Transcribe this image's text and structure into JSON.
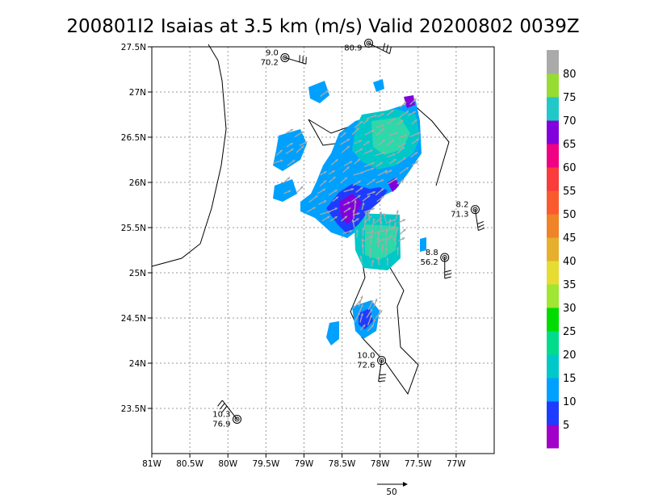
{
  "title": "200801I2 Isaias at 3.5 km (m/s) Valid 20200802 0039Z",
  "map": {
    "lon_range": [
      -81.0,
      -76.5
    ],
    "lat_range": [
      23.0,
      27.5
    ],
    "x_ticks": [
      {
        "lon": -81.0,
        "label": "81W"
      },
      {
        "lon": -80.5,
        "label": "80.5W"
      },
      {
        "lon": -80.0,
        "label": "80W"
      },
      {
        "lon": -79.5,
        "label": "79.5W"
      },
      {
        "lon": -79.0,
        "label": "79W"
      },
      {
        "lon": -78.5,
        "label": "78.5W"
      },
      {
        "lon": -78.0,
        "label": "78W"
      },
      {
        "lon": -77.5,
        "label": "77.5W"
      },
      {
        "lon": -77.0,
        "label": "77W"
      }
    ],
    "y_ticks": [
      {
        "lat": 27.5,
        "label": "27.5N"
      },
      {
        "lat": 27.0,
        "label": "27N"
      },
      {
        "lat": 26.5,
        "label": "26.5N"
      },
      {
        "lat": 26.0,
        "label": "26N"
      },
      {
        "lat": 25.5,
        "label": "25.5N"
      },
      {
        "lat": 25.0,
        "label": "25N"
      },
      {
        "lat": 24.5,
        "label": "24.5N"
      },
      {
        "lat": 24.0,
        "label": "24N"
      },
      {
        "lat": 23.5,
        "label": "23.5N"
      }
    ],
    "grid": true
  },
  "colorbar": {
    "labels": [
      "5",
      "10",
      "15",
      "20",
      "25",
      "30",
      "35",
      "40",
      "45",
      "50",
      "55",
      "60",
      "65",
      "70",
      "75",
      "80"
    ],
    "colors": [
      "#a000c8",
      "#1e3cff",
      "#00a0ff",
      "#00c8c8",
      "#00dc8c",
      "#00dc00",
      "#a0e632",
      "#e6dc32",
      "#e6af2d",
      "#f08228",
      "#fa5a2d",
      "#fa3c3c",
      "#f00082",
      "#8200dc",
      "#20c8c8",
      "#96dc32",
      "#aaaaaa"
    ]
  },
  "reference_vector": {
    "label": "50"
  },
  "stations": [
    {
      "lon": -79.25,
      "lat": 27.38,
      "top": "9.0",
      "bottom": "70.2"
    },
    {
      "lon": -78.15,
      "lat": 27.54,
      "top": "",
      "bottom": "80.9"
    },
    {
      "lon": -76.75,
      "lat": 25.7,
      "top": "8.2",
      "bottom": "71.3"
    },
    {
      "lon": -77.15,
      "lat": 25.17,
      "top": "8.8",
      "bottom": "56.2"
    },
    {
      "lon": -77.98,
      "lat": 24.03,
      "top": "10.0",
      "bottom": "72.6"
    },
    {
      "lon": -79.88,
      "lat": 23.38,
      "top": "10.3",
      "bottom": "76.9"
    }
  ]
}
